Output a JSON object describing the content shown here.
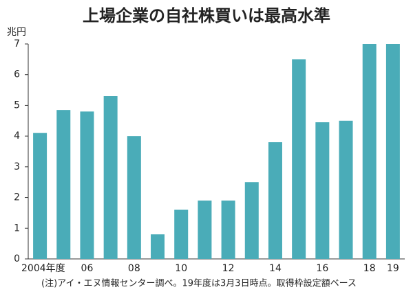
{
  "chart_data": {
    "type": "bar",
    "title": "上場企業の自社株買いは最高水準",
    "y_unit": "兆円",
    "note": "(注)アイ・エヌ情報センター調べ。19年度は3月3日時点。取得枠設定額ベース",
    "categories": [
      "2004年度",
      null,
      "06",
      null,
      "08",
      null,
      "10",
      null,
      "12",
      null,
      "14",
      null,
      "16",
      null,
      "18",
      "19"
    ],
    "values": [
      4.1,
      4.85,
      4.8,
      5.3,
      4.0,
      0.8,
      1.6,
      1.9,
      1.9,
      2.5,
      3.8,
      6.5,
      4.45,
      4.5,
      7.0,
      7.0
    ],
    "color": "#4aacb8",
    "ylim": [
      0,
      7
    ],
    "yticks": [
      0,
      1,
      2,
      3,
      4,
      5,
      6,
      7
    ],
    "grid": false
  }
}
